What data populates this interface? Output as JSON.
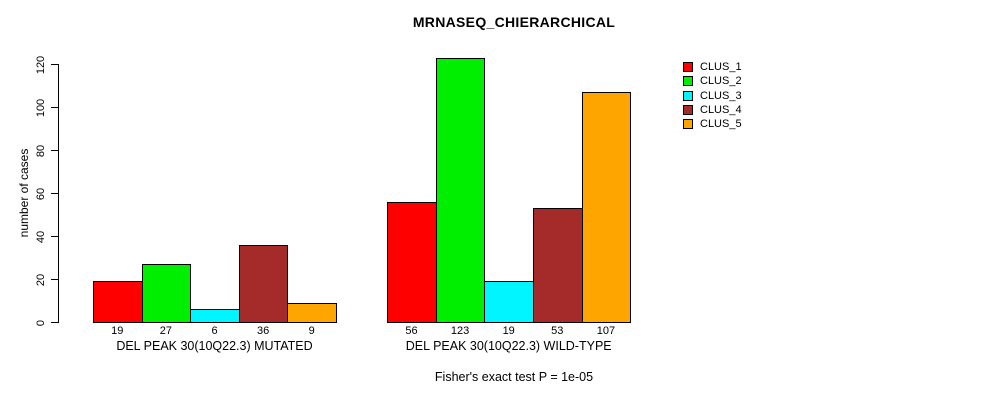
{
  "title": "MRNASEQ_CHIERARCHICAL",
  "chart_data": {
    "type": "bar",
    "title": "MRNASEQ_CHIERARCHICAL",
    "ylabel": "number of cases",
    "xlabel": "",
    "ylim": [
      0,
      128
    ],
    "yticks": [
      0,
      20,
      40,
      60,
      80,
      100,
      120
    ],
    "grid": false,
    "legend_position": "top-right",
    "series": [
      {
        "name": "CLUS_1",
        "color": "#FF0000",
        "values": [
          19,
          56
        ]
      },
      {
        "name": "CLUS_2",
        "color": "#00EE00",
        "values": [
          27,
          123
        ]
      },
      {
        "name": "CLUS_3",
        "color": "#00F5FF",
        "values": [
          6,
          19
        ]
      },
      {
        "name": "CLUS_4",
        "color": "#A52A2A",
        "values": [
          36,
          53
        ]
      },
      {
        "name": "CLUS_5",
        "color": "#FFA500",
        "values": [
          9,
          107
        ]
      }
    ],
    "categories": [
      "DEL PEAK 30(10Q22.3) MUTATED",
      "DEL PEAK 30(10Q22.3) WILD-TYPE"
    ],
    "bar_value_labels": [
      [
        "19",
        "27",
        "6",
        "36",
        "9"
      ],
      [
        "56",
        "123",
        "19",
        "53",
        "107"
      ]
    ],
    "footnote": "Fisher's exact test P = 1e-05",
    "axis_color": "#000000",
    "bar_border_color": "#000000"
  }
}
